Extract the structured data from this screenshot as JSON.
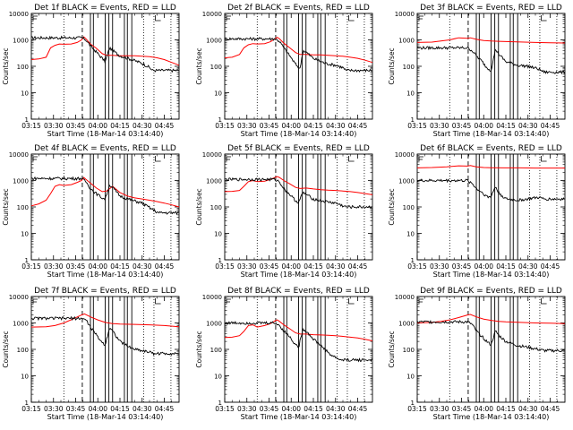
{
  "shared": {
    "x_tick_labels": [
      "03:15",
      "03:30",
      "03:45",
      "04:00",
      "04:15",
      "04:30",
      "04:45"
    ],
    "x_tick_minutes": [
      0,
      15,
      30,
      45,
      60,
      75,
      90
    ],
    "y_tick_labels": [
      "1",
      "10",
      "100",
      "1000",
      "10000"
    ],
    "xlabel": "Start Time (18-Mar-14 03:14:40)",
    "ylabel": "Counts/sec",
    "colors": {
      "events": "#000000",
      "lld": "#ff0000",
      "frame": "#000000"
    },
    "markers": {
      "dotted_x": [
        22,
        76,
        83,
        94.5
      ],
      "dashed_x": [
        34.5
      ],
      "solid_x": [
        40,
        42,
        50,
        52.5,
        55,
        63,
        65,
        68
      ]
    }
  },
  "chart_data": [
    {
      "type": "line",
      "title": "Det 1f BLACK = Events, RED = LLD",
      "xlabel": "Start Time (18-Mar-14 03:14:40)",
      "ylabel": "Counts/sec",
      "xlim": [
        0,
        100
      ],
      "ylim": [
        1,
        10000
      ],
      "yscale": "log",
      "series": [
        {
          "name": "Events",
          "color": "#000000",
          "x": [],
          "y": []
        },
        {
          "name": "LLD",
          "color": "#ff0000",
          "x": [
            0,
            5,
            10,
            13,
            16,
            19,
            22,
            27,
            31,
            34,
            35.5,
            37,
            40,
            44,
            48,
            51,
            55,
            60,
            65,
            70,
            75,
            80,
            85,
            90,
            95,
            100
          ],
          "y": [
            180,
            190,
            220,
            500,
            620,
            700,
            680,
            700,
            800,
            1000,
            1300,
            1100,
            700,
            480,
            300,
            260,
            260,
            250,
            250,
            250,
            240,
            230,
            210,
            180,
            140,
            110
          ]
        }
      ]
    },
    {
      "type": "line",
      "title": "Det 2f BLACK = Events, RED = LLD",
      "xlabel": "Start Time (18-Mar-14 03:14:40)",
      "ylabel": "Counts/sec",
      "xlim": [
        0,
        100
      ],
      "ylim": [
        1,
        10000
      ],
      "yscale": "log",
      "series": [
        {
          "name": "Events",
          "color": "#000000",
          "x": [],
          "y": []
        },
        {
          "name": "LLD",
          "color": "#ff0000",
          "x": [
            0,
            5,
            10,
            13,
            16,
            19,
            22,
            27,
            31,
            34,
            35.5,
            37,
            40,
            44,
            48,
            51,
            55,
            60,
            65,
            70,
            75,
            80,
            85,
            90,
            95,
            100
          ],
          "y": [
            210,
            220,
            280,
            500,
            650,
            720,
            700,
            720,
            850,
            1100,
            1250,
            1100,
            750,
            500,
            330,
            280,
            280,
            270,
            270,
            260,
            250,
            240,
            220,
            200,
            170,
            140
          ]
        }
      ]
    },
    {
      "type": "line",
      "title": "Det 3f BLACK = Events, RED = LLD",
      "xlabel": "Start Time (18-Mar-14 03:14:40)",
      "ylabel": "Counts/sec",
      "xlim": [
        0,
        100
      ],
      "ylim": [
        1,
        10000
      ],
      "yscale": "log",
      "series": [
        {
          "name": "Events",
          "color": "#000000",
          "x": [],
          "y": []
        },
        {
          "name": "LLD",
          "color": "#ff0000",
          "x": [
            0,
            10,
            16,
            22,
            28,
            34,
            36,
            40,
            45,
            50,
            55,
            60,
            70,
            80,
            90,
            100
          ],
          "y": [
            800,
            820,
            900,
            1000,
            1200,
            1150,
            1200,
            1050,
            950,
            900,
            880,
            860,
            830,
            800,
            780,
            760
          ]
        }
      ]
    },
    {
      "type": "line",
      "title": "Det 4f BLACK = Events, RED = LLD",
      "xlabel": "Start Time (18-Mar-14 03:14:40)",
      "ylabel": "Counts/sec",
      "xlim": [
        0,
        100
      ],
      "ylim": [
        1,
        10000
      ],
      "yscale": "log",
      "series": [
        {
          "name": "Events",
          "color": "#000000",
          "x": [],
          "y": []
        },
        {
          "name": "LLD",
          "color": "#ff0000",
          "x": [
            0,
            5,
            10,
            13,
            16,
            19,
            22,
            27,
            31,
            34,
            35.5,
            37,
            40,
            44,
            48,
            51,
            55,
            60,
            65,
            70,
            75,
            80,
            85,
            90,
            95,
            100
          ],
          "y": [
            110,
            130,
            180,
            320,
            600,
            700,
            650,
            700,
            850,
            1000,
            1300,
            1100,
            800,
            520,
            380,
            400,
            600,
            350,
            260,
            220,
            200,
            180,
            160,
            140,
            120,
            100
          ]
        }
      ]
    },
    {
      "type": "line",
      "title": "Det 5f BLACK = Events, RED = LLD",
      "xlabel": "Start Time (18-Mar-14 03:14:40)",
      "ylabel": "Counts/sec",
      "xlim": [
        0,
        100
      ],
      "ylim": [
        1,
        10000
      ],
      "yscale": "log",
      "series": [
        {
          "name": "Events",
          "color": "#000000",
          "x": [],
          "y": []
        },
        {
          "name": "LLD",
          "color": "#ff0000",
          "x": [
            0,
            5,
            10,
            13,
            16,
            19,
            22,
            27,
            31,
            34,
            35.5,
            37,
            40,
            44,
            48,
            51,
            55,
            60,
            65,
            70,
            75,
            80,
            85,
            90,
            95,
            100
          ],
          "y": [
            380,
            390,
            420,
            600,
            900,
            1000,
            900,
            950,
            1100,
            1300,
            1400,
            1300,
            1000,
            750,
            550,
            500,
            520,
            480,
            450,
            430,
            420,
            400,
            380,
            350,
            320,
            290
          ]
        }
      ]
    },
    {
      "type": "line",
      "title": "Det 6f BLACK = Events, RED = LLD",
      "xlabel": "Start Time (18-Mar-14 03:14:40)",
      "ylabel": "Counts/sec",
      "xlim": [
        0,
        100
      ],
      "ylim": [
        1,
        10000
      ],
      "yscale": "log",
      "series": [
        {
          "name": "Events",
          "color": "#000000",
          "x": [],
          "y": []
        },
        {
          "name": "LLD",
          "color": "#ff0000",
          "x": [
            0,
            10,
            20,
            28,
            34,
            36,
            40,
            45,
            50,
            60,
            70,
            80,
            90,
            100
          ],
          "y": [
            3000,
            3100,
            3300,
            3600,
            3500,
            3700,
            3300,
            3100,
            3050,
            3000,
            3000,
            2950,
            2950,
            2950
          ]
        }
      ]
    },
    {
      "type": "line",
      "title": "Det 7f BLACK = Events, RED = LLD",
      "xlabel": "Start Time (18-Mar-14 03:14:40)",
      "ylabel": "Counts/sec",
      "xlim": [
        0,
        100
      ],
      "ylim": [
        1,
        10000
      ],
      "yscale": "log",
      "series": [
        {
          "name": "Events",
          "color": "#000000",
          "x": [],
          "y": []
        },
        {
          "name": "LLD",
          "color": "#ff0000",
          "x": [
            0,
            10,
            16,
            22,
            28,
            34,
            36,
            40,
            45,
            50,
            55,
            60,
            70,
            80,
            90,
            100
          ],
          "y": [
            700,
            720,
            800,
            1000,
            1400,
            2000,
            2200,
            1700,
            1300,
            1050,
            950,
            900,
            880,
            850,
            800,
            720
          ]
        }
      ]
    },
    {
      "type": "line",
      "title": "Det 8f BLACK = Events, RED = LLD",
      "xlabel": "Start Time (18-Mar-14 03:14:40)",
      "ylabel": "Counts/sec",
      "xlim": [
        0,
        100
      ],
      "ylim": [
        1,
        10000
      ],
      "yscale": "log",
      "series": [
        {
          "name": "Events",
          "color": "#000000",
          "x": [],
          "y": []
        },
        {
          "name": "LLD",
          "color": "#ff0000",
          "x": [
            0,
            5,
            10,
            13,
            16,
            19,
            22,
            27,
            31,
            34,
            35.5,
            37,
            40,
            44,
            48,
            51,
            55,
            60,
            65,
            70,
            75,
            80,
            85,
            90,
            95,
            100
          ],
          "y": [
            280,
            290,
            330,
            480,
            800,
            850,
            700,
            800,
            950,
            1200,
            1300,
            1150,
            850,
            600,
            420,
            380,
            380,
            360,
            350,
            340,
            330,
            310,
            290,
            270,
            240,
            210
          ]
        }
      ]
    },
    {
      "type": "line",
      "title": "Det 9f BLACK = Events, RED = LLD",
      "xlabel": "Start Time (18-Mar-14 03:14:40)",
      "ylabel": "Counts/sec",
      "xlim": [
        0,
        100
      ],
      "ylim": [
        1,
        10000
      ],
      "yscale": "log",
      "series": [
        {
          "name": "Events",
          "color": "#000000",
          "x": [],
          "y": []
        },
        {
          "name": "LLD",
          "color": "#ff0000",
          "x": [
            0,
            10,
            16,
            22,
            28,
            34,
            36,
            40,
            45,
            50,
            55,
            60,
            70,
            80,
            90,
            100
          ],
          "y": [
            1000,
            1050,
            1150,
            1300,
            1600,
            2000,
            2100,
            1700,
            1400,
            1250,
            1150,
            1100,
            1050,
            1000,
            980,
            950
          ]
        }
      ]
    }
  ]
}
